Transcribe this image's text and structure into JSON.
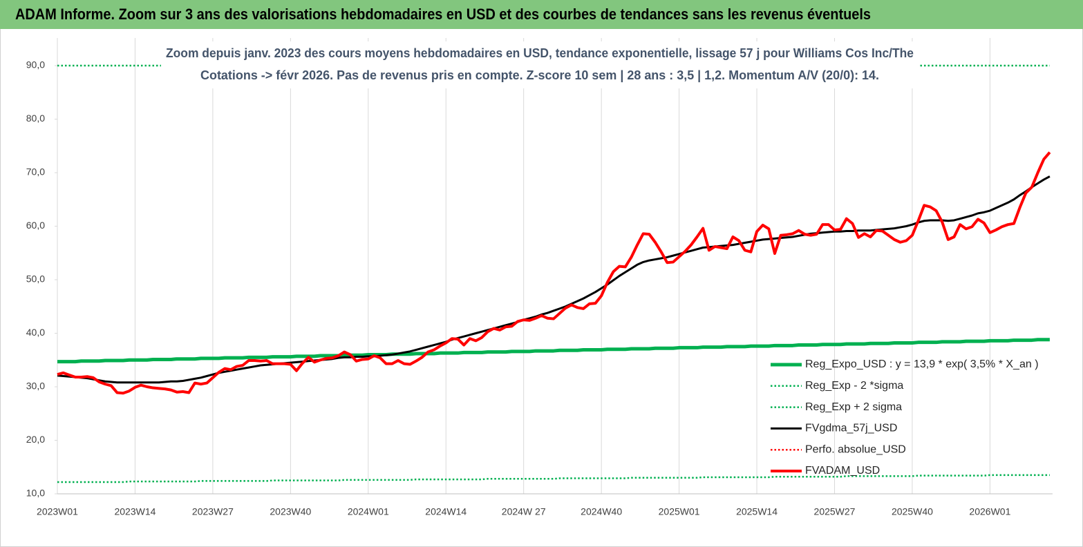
{
  "header": {
    "title": "ADAM Informe. Zoom sur 3 ans des valorisations hebdomadaires en USD et des courbes de tendances sans les revenus éventuels"
  },
  "chart_data": {
    "type": "line",
    "title": "Zoom depuis janv. 2023 des cours moyens hebdomadaires en USD, tendance exponentielle, lissage 57 j pour Williams Cos Inc/The",
    "subtitle": "Cotations -> févr 2026.  Pas de revenus pris en compte. Z-score 10 sem  | 28 ans : 3,5  | 1,2. Momentum A/V (20/0): 14.",
    "legend": "lower right",
    "grid": true,
    "ylim": [
      10,
      90
    ],
    "yticks": [
      {
        "value": 10,
        "label": "10,0"
      },
      {
        "value": 20,
        "label": "20,0"
      },
      {
        "value": 30,
        "label": "30,0"
      },
      {
        "value": 40,
        "label": "40,0"
      },
      {
        "value": 50,
        "label": "50,0"
      },
      {
        "value": 60,
        "label": "60,0"
      },
      {
        "value": 70,
        "label": "70,0"
      },
      {
        "value": 80,
        "label": "80,0"
      },
      {
        "value": 90,
        "label": "90,0"
      }
    ],
    "categories": [
      "2023W01",
      null,
      null,
      null,
      null,
      null,
      null,
      null,
      null,
      null,
      null,
      null,
      null,
      "2023W14",
      null,
      null,
      null,
      null,
      null,
      null,
      null,
      null,
      null,
      null,
      null,
      null,
      "2023W27",
      null,
      null,
      null,
      null,
      null,
      null,
      null,
      null,
      null,
      null,
      null,
      null,
      "2023W40",
      null,
      null,
      null,
      null,
      null,
      null,
      null,
      null,
      null,
      null,
      null,
      null,
      "2024W01",
      null,
      null,
      null,
      null,
      null,
      null,
      null,
      null,
      null,
      null,
      null,
      null,
      "2024W14",
      null,
      null,
      null,
      null,
      null,
      null,
      null,
      null,
      null,
      null,
      null,
      null,
      "2024W 27",
      null,
      null,
      null,
      null,
      null,
      null,
      null,
      null,
      null,
      null,
      null,
      null,
      "2024W40",
      null,
      null,
      null,
      null,
      null,
      null,
      null,
      null,
      null,
      null,
      null,
      null,
      "2025W01",
      null,
      null,
      null,
      null,
      null,
      null,
      null,
      null,
      null,
      null,
      null,
      null,
      "2025W14",
      null,
      null,
      null,
      null,
      null,
      null,
      null,
      null,
      null,
      null,
      null,
      null,
      "2025W27",
      null,
      null,
      null,
      null,
      null,
      null,
      null,
      null,
      null,
      null,
      null,
      null,
      "2025W40",
      null,
      null,
      null,
      null,
      null,
      null,
      null,
      null,
      null,
      null,
      null,
      null,
      "2026W01",
      null,
      null,
      null,
      null,
      null,
      null,
      null,
      null,
      null,
      null
    ],
    "series": [
      {
        "name": "Reg_Expo_USD : y = 13,9 * exp( 3,5% *  X_an )",
        "color": "#00b050",
        "style": "solid",
        "width": 5,
        "values": [
          34.7,
          34.7,
          34.7,
          34.7,
          34.8,
          34.8,
          34.8,
          34.8,
          34.9,
          34.9,
          34.9,
          34.9,
          35.0,
          35.0,
          35.0,
          35.0,
          35.1,
          35.1,
          35.1,
          35.1,
          35.2,
          35.2,
          35.2,
          35.2,
          35.3,
          35.3,
          35.3,
          35.3,
          35.4,
          35.4,
          35.4,
          35.4,
          35.5,
          35.5,
          35.5,
          35.5,
          35.6,
          35.6,
          35.6,
          35.6,
          35.7,
          35.7,
          35.7,
          35.7,
          35.8,
          35.8,
          35.8,
          35.8,
          35.9,
          35.9,
          35.9,
          35.9,
          36.0,
          36.0,
          36.0,
          36.0,
          36.1,
          36.1,
          36.1,
          36.1,
          36.2,
          36.2,
          36.2,
          36.2,
          36.3,
          36.3,
          36.3,
          36.3,
          36.4,
          36.4,
          36.4,
          36.4,
          36.5,
          36.5,
          36.5,
          36.5,
          36.6,
          36.6,
          36.6,
          36.6,
          36.7,
          36.7,
          36.7,
          36.7,
          36.8,
          36.8,
          36.8,
          36.8,
          36.9,
          36.9,
          36.9,
          36.9,
          37.0,
          37.0,
          37.0,
          37.0,
          37.1,
          37.1,
          37.1,
          37.1,
          37.2,
          37.2,
          37.2,
          37.2,
          37.3,
          37.3,
          37.3,
          37.3,
          37.4,
          37.4,
          37.4,
          37.4,
          37.5,
          37.5,
          37.5,
          37.5,
          37.6,
          37.6,
          37.6,
          37.6,
          37.7,
          37.7,
          37.7,
          37.7,
          37.8,
          37.8,
          37.8,
          37.8,
          37.9,
          37.9,
          37.9,
          37.9,
          38.0,
          38.0,
          38.0,
          38.0,
          38.1,
          38.1,
          38.1,
          38.1,
          38.2,
          38.2,
          38.2,
          38.2,
          38.3,
          38.3,
          38.3,
          38.3,
          38.4,
          38.4,
          38.4,
          38.4,
          38.5,
          38.5,
          38.5,
          38.5,
          38.6,
          38.6,
          38.6,
          38.6,
          38.7,
          38.7,
          38.7,
          38.7,
          38.8,
          38.8,
          38.8
        ]
      },
      {
        "name": "Reg_Exp - 2 *sigma",
        "color": "#00b050",
        "style": "dotted",
        "width": 2.5,
        "values": [
          12.2,
          12.2,
          12.2,
          12.2,
          12.2,
          12.2,
          12.2,
          12.2,
          12.2,
          12.2,
          12.2,
          12.2,
          12.3,
          12.3,
          12.3,
          12.3,
          12.3,
          12.3,
          12.3,
          12.3,
          12.3,
          12.3,
          12.3,
          12.3,
          12.4,
          12.4,
          12.4,
          12.4,
          12.4,
          12.4,
          12.4,
          12.4,
          12.4,
          12.4,
          12.4,
          12.4,
          12.5,
          12.5,
          12.5,
          12.5,
          12.5,
          12.5,
          12.5,
          12.5,
          12.5,
          12.5,
          12.5,
          12.5,
          12.6,
          12.6,
          12.6,
          12.6,
          12.6,
          12.6,
          12.6,
          12.6,
          12.6,
          12.6,
          12.6,
          12.6,
          12.7,
          12.7,
          12.7,
          12.7,
          12.7,
          12.7,
          12.7,
          12.7,
          12.7,
          12.7,
          12.7,
          12.7,
          12.8,
          12.8,
          12.8,
          12.8,
          12.8,
          12.8,
          12.8,
          12.8,
          12.8,
          12.8,
          12.8,
          12.8,
          12.9,
          12.9,
          12.9,
          12.9,
          12.9,
          12.9,
          12.9,
          12.9,
          12.9,
          12.9,
          12.9,
          12.9,
          13.0,
          13.0,
          13.0,
          13.0,
          13.0,
          13.0,
          13.0,
          13.0,
          13.0,
          13.0,
          13.0,
          13.0,
          13.1,
          13.1,
          13.1,
          13.1,
          13.1,
          13.1,
          13.1,
          13.1,
          13.1,
          13.1,
          13.1,
          13.1,
          13.2,
          13.2,
          13.2,
          13.2,
          13.2,
          13.2,
          13.2,
          13.2,
          13.2,
          13.2,
          13.2,
          13.2,
          13.3,
          13.3,
          13.3,
          13.3,
          13.3,
          13.3,
          13.3,
          13.3,
          13.3,
          13.3,
          13.3,
          13.3,
          13.4,
          13.4,
          13.4,
          13.4,
          13.4,
          13.4,
          13.4,
          13.4,
          13.4,
          13.4,
          13.4,
          13.4,
          13.5,
          13.5,
          13.5,
          13.5,
          13.5,
          13.5,
          13.5,
          13.5,
          13.5,
          13.5,
          13.5
        ]
      },
      {
        "name": "Reg_Exp + 2 sigma",
        "color": "#00b050",
        "style": "dotted",
        "width": 2.5,
        "values": [
          90,
          90,
          90,
          90,
          90,
          90,
          90,
          90,
          90,
          90,
          90,
          90,
          90,
          90,
          90,
          90,
          90,
          90,
          90,
          90,
          90,
          90,
          90,
          90,
          90,
          90,
          90,
          90,
          90,
          90,
          90,
          90,
          90,
          90,
          90,
          90,
          90,
          90,
          90,
          90,
          90,
          90,
          90,
          90,
          90,
          90,
          90,
          90,
          90,
          90,
          90,
          90,
          90,
          90,
          90,
          90,
          90,
          90,
          90,
          90,
          90,
          90,
          90,
          90,
          90,
          90,
          90,
          90,
          90,
          90,
          90,
          90,
          90,
          90,
          90,
          90,
          90,
          90,
          90,
          90,
          90,
          90,
          90,
          90,
          90,
          90,
          90,
          90,
          90,
          90,
          90,
          90,
          90,
          90,
          90,
          90,
          90,
          90,
          90,
          90,
          90,
          90,
          90,
          90,
          90,
          90,
          90,
          90,
          90,
          90,
          90,
          90,
          90,
          90,
          90,
          90,
          90,
          90,
          90,
          90,
          90,
          90,
          90,
          90,
          90,
          90,
          90,
          90,
          90,
          90,
          90,
          90,
          90,
          90,
          90,
          90,
          90,
          90,
          90,
          90,
          90,
          90,
          90,
          90,
          90,
          90,
          90,
          90,
          90,
          90,
          90,
          90,
          90,
          90,
          90,
          90,
          90,
          90,
          90,
          90,
          90,
          90,
          90,
          90,
          90,
          90,
          90
        ]
      },
      {
        "name": "FVgdma_57j_USD",
        "color": "#000000",
        "style": "solid",
        "width": 3,
        "values": [
          32.1,
          32.0,
          31.9,
          31.8,
          31.7,
          31.6,
          31.4,
          31.2,
          31.0,
          30.9,
          30.8,
          30.8,
          30.8,
          30.8,
          30.8,
          30.8,
          30.8,
          30.8,
          30.9,
          31.0,
          31.0,
          31.1,
          31.3,
          31.5,
          31.7,
          32.0,
          32.3,
          32.6,
          32.8,
          33.0,
          33.2,
          33.4,
          33.6,
          33.8,
          34.0,
          34.1,
          34.2,
          34.3,
          34.4,
          34.5,
          34.6,
          34.7,
          34.8,
          34.9,
          35.0,
          35.1,
          35.2,
          35.4,
          35.5,
          35.5,
          35.6,
          35.6,
          35.7,
          35.7,
          35.8,
          35.9,
          36.0,
          36.2,
          36.4,
          36.6,
          36.9,
          37.2,
          37.5,
          37.8,
          38.1,
          38.4,
          38.8,
          39.1,
          39.4,
          39.7,
          40.0,
          40.3,
          40.6,
          40.9,
          41.2,
          41.5,
          41.8,
          42.1,
          42.5,
          42.8,
          43.1,
          43.5,
          43.8,
          44.2,
          44.6,
          45.0,
          45.5,
          46.0,
          46.5,
          47.1,
          47.7,
          48.4,
          49.1,
          49.9,
          50.7,
          51.4,
          52.1,
          52.8,
          53.3,
          53.6,
          53.8,
          54.0,
          54.2,
          54.5,
          54.8,
          55.1,
          55.4,
          55.7,
          56.0,
          56.1,
          56.2,
          56.3,
          56.4,
          56.5,
          56.7,
          56.9,
          57.1,
          57.3,
          57.5,
          57.6,
          57.7,
          57.8,
          57.9,
          58.0,
          58.2,
          58.4,
          58.6,
          58.7,
          58.8,
          58.9,
          59.0,
          59.0,
          59.1,
          59.1,
          59.2,
          59.2,
          59.2,
          59.3,
          59.4,
          59.5,
          59.6,
          59.8,
          60.0,
          60.3,
          60.7,
          61.0,
          61.1,
          61.1,
          61.1,
          61.0,
          61.1,
          61.4,
          61.7,
          62.0,
          62.4,
          62.6,
          62.9,
          63.4,
          63.9,
          64.4,
          65.0,
          65.8,
          66.5,
          67.3,
          68.0,
          68.7,
          69.3
        ]
      },
      {
        "name": "Perfo. absolue_USD",
        "color": "#ff0000",
        "style": "dotted",
        "width": 2.5,
        "values": [
          null,
          null,
          null,
          null,
          null,
          null,
          null,
          null,
          null,
          null,
          null,
          null,
          null,
          null,
          null,
          null,
          null,
          null,
          null,
          null,
          null,
          null,
          null,
          null,
          null,
          null,
          null,
          null,
          null,
          null,
          null,
          null,
          null,
          null,
          null,
          null,
          null,
          null,
          null,
          null,
          null,
          null,
          null,
          null,
          null,
          null,
          null,
          null,
          null,
          null,
          null,
          null,
          null,
          null,
          null,
          null,
          null,
          null,
          null,
          null,
          null,
          null,
          null,
          null,
          null,
          null,
          null,
          null,
          null,
          null,
          null,
          null,
          null,
          null,
          null,
          null,
          null,
          null,
          null,
          null,
          null,
          null,
          null,
          null,
          null,
          null,
          null,
          null,
          null,
          null,
          null,
          null,
          null,
          null,
          null,
          null,
          null,
          null,
          null,
          null,
          null,
          null,
          null,
          null,
          null,
          null,
          null,
          null,
          null,
          null,
          null,
          null,
          null,
          null,
          null,
          null,
          null,
          null,
          null,
          null,
          null,
          null,
          null,
          null,
          null,
          null,
          null,
          null,
          null,
          null,
          null,
          null,
          null,
          null,
          null,
          null,
          null,
          null,
          null,
          null,
          null,
          null,
          null,
          null,
          null,
          null,
          null,
          null,
          null,
          null,
          null,
          null,
          null,
          null,
          null,
          null,
          null,
          null,
          null,
          null,
          null,
          null,
          null,
          null,
          null,
          null,
          null
        ]
      },
      {
        "name": "FVADAM_USD",
        "color": "#ff0000",
        "style": "solid",
        "width": 4,
        "values": [
          32.3,
          32.6,
          32.2,
          31.8,
          31.8,
          31.9,
          31.7,
          30.9,
          30.5,
          30.2,
          28.9,
          28.8,
          29.2,
          29.9,
          30.3,
          30.0,
          29.8,
          29.7,
          29.6,
          29.4,
          29.0,
          29.1,
          28.9,
          30.7,
          30.5,
          30.7,
          31.7,
          32.7,
          33.4,
          33.2,
          33.8,
          34.0,
          34.9,
          34.9,
          34.8,
          34.9,
          34.3,
          34.3,
          34.3,
          34.2,
          33.0,
          34.4,
          35.5,
          34.6,
          35.0,
          35.3,
          35.4,
          35.8,
          36.5,
          36.0,
          34.8,
          35.1,
          35.2,
          35.8,
          35.4,
          34.3,
          34.3,
          34.9,
          34.3,
          34.2,
          34.8,
          35.5,
          36.5,
          36.9,
          37.6,
          38.2,
          39.0,
          38.9,
          37.8,
          39.0,
          38.6,
          39.2,
          40.3,
          40.9,
          40.6,
          41.2,
          41.3,
          42.2,
          42.5,
          42.4,
          42.8,
          43.3,
          42.8,
          42.7,
          43.7,
          44.7,
          45.3,
          44.8,
          44.6,
          45.5,
          45.6,
          47.0,
          49.5,
          51.5,
          52.5,
          52.4,
          54.2,
          56.5,
          58.6,
          58.5,
          57.0,
          55.2,
          53.2,
          53.3,
          54.3,
          55.3,
          56.5,
          58.0,
          59.6,
          55.5,
          56.2,
          56.0,
          55.8,
          58.0,
          57.3,
          55.5,
          55.2,
          59.0,
          60.2,
          59.5,
          54.9,
          58.3,
          58.4,
          58.6,
          59.2,
          58.5,
          58.3,
          58.5,
          60.3,
          60.3,
          59.3,
          59.4,
          61.4,
          60.5,
          57.9,
          58.6,
          58.0,
          59.2,
          59.1,
          58.3,
          57.5,
          57.0,
          57.3,
          58.3,
          61.0,
          63.9,
          63.6,
          62.9,
          60.8,
          57.5,
          58.0,
          60.3,
          59.5,
          59.9,
          61.3,
          60.6,
          58.8,
          59.3,
          59.9,
          60.3,
          60.5,
          63.5,
          66.2,
          67.3,
          70.0,
          72.5,
          73.8
        ]
      }
    ]
  }
}
